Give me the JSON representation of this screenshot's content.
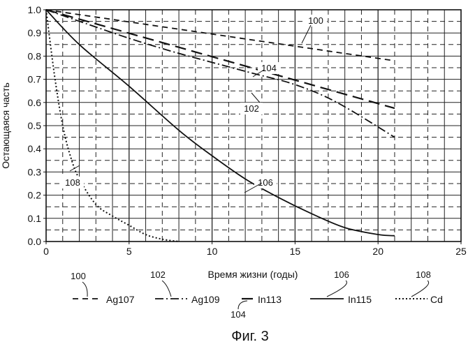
{
  "chart_data": {
    "type": "line",
    "title": "",
    "xlabel": "Время жизни (годы)",
    "ylabel": "Остающаяся часть",
    "xlim": [
      0,
      25
    ],
    "ylim": [
      0,
      1.0
    ],
    "xticks": [
      "0",
      "5",
      "10",
      "15",
      "20",
      "25"
    ],
    "yticks": [
      "0.0",
      "0.1",
      "0.2",
      "0.3",
      "0.4",
      "0.5",
      "0.6",
      "0.7",
      "0.8",
      "0.9",
      "1.0"
    ],
    "grid": true,
    "legend_position": "bottom",
    "series": [
      {
        "name": "Ag107",
        "ref": "100",
        "dash": "dash",
        "x": [
          0,
          21
        ],
        "y": [
          1.0,
          0.78
        ]
      },
      {
        "name": "Ag109",
        "ref": "102",
        "dash": "dashdot",
        "x": [
          0,
          2.5,
          5,
          7.5,
          10,
          12.5,
          15,
          17.5,
          21
        ],
        "y": [
          1.0,
          0.938,
          0.877,
          0.822,
          0.773,
          0.725,
          0.677,
          0.601,
          0.45
        ]
      },
      {
        "name": "In113",
        "ref": "104",
        "dash": "longdash",
        "x": [
          0,
          21
        ],
        "y": [
          1.0,
          0.575
        ]
      },
      {
        "name": "In115",
        "ref": "106",
        "dash": "solid",
        "x": [
          0,
          2,
          5,
          8,
          10,
          12,
          14,
          16,
          18,
          20,
          21
        ],
        "y": [
          1.0,
          0.85,
          0.67,
          0.48,
          0.37,
          0.27,
          0.19,
          0.12,
          0.06,
          0.03,
          0.025
        ]
      },
      {
        "name": "Cd",
        "ref": "108",
        "dash": "dot",
        "x": [
          0,
          0.5,
          1,
          1.5,
          2,
          3,
          4,
          5,
          6,
          7,
          8
        ],
        "y": [
          1.0,
          0.72,
          0.5,
          0.36,
          0.27,
          0.16,
          0.11,
          0.07,
          0.03,
          0.01,
          0.0
        ]
      }
    ]
  },
  "callouts": [
    "100",
    "102",
    "104",
    "106",
    "108"
  ],
  "caption": "Фиг. 3"
}
